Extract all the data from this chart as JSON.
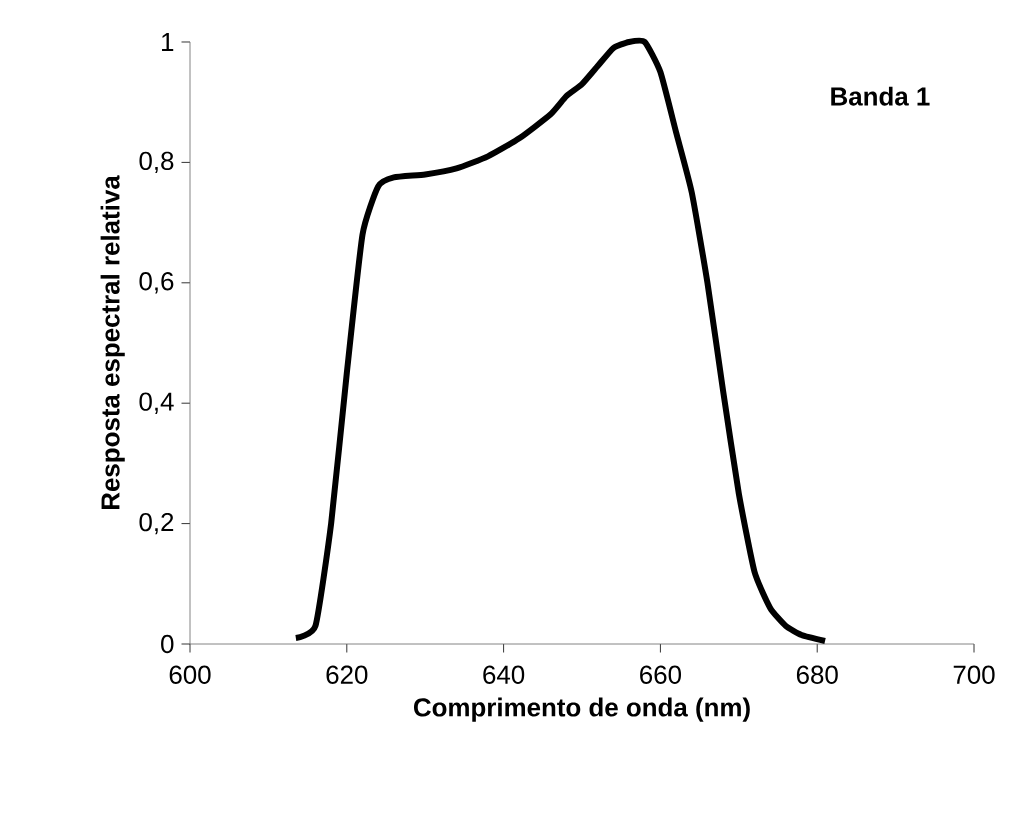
{
  "chart_data": {
    "type": "line",
    "xlabel": "Comprimento de onda (nm)",
    "ylabel": "Resposta espectral relativa",
    "annotations": [
      "Banda 1"
    ],
    "x": [
      613.5,
      616,
      618,
      620,
      622,
      624,
      626,
      630,
      634,
      638,
      642,
      646,
      648,
      650,
      652,
      654,
      656,
      658,
      660,
      662,
      664,
      666,
      668,
      670,
      672,
      674,
      676,
      678,
      681
    ],
    "series": [
      {
        "color": "#000000",
        "values": [
          0.01,
          0.03,
          0.2,
          0.45,
          0.68,
          0.76,
          0.775,
          0.78,
          0.79,
          0.81,
          0.84,
          0.88,
          0.91,
          0.93,
          0.96,
          0.99,
          1.0,
          1.0,
          0.95,
          0.85,
          0.75,
          0.6,
          0.42,
          0.25,
          0.12,
          0.06,
          0.03,
          0.015,
          0.005
        ]
      }
    ],
    "xlim": [
      600,
      700
    ],
    "xticks": [
      600,
      620,
      640,
      660,
      680,
      700
    ],
    "ylim": [
      0,
      1
    ],
    "yticks": [
      0,
      {
        "value": 0.2,
        "label": "0,2"
      },
      {
        "value": 0.4,
        "label": "0,4"
      },
      {
        "value": 0.6,
        "label": "0,6"
      },
      {
        "value": 0.8,
        "label": "0,8"
      },
      1
    ],
    "grid": false,
    "marker": "none",
    "line_style": "solid"
  }
}
